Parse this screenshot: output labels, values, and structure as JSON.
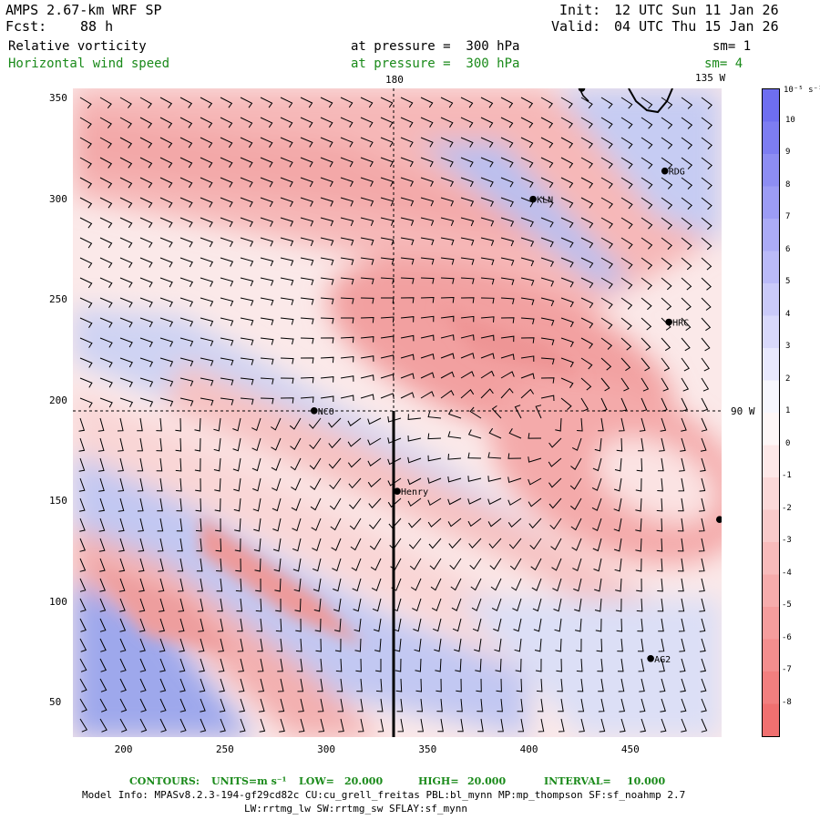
{
  "header": {
    "model": "AMPS 2.67-km WRF SP",
    "forecast_label": "Fcst:",
    "forecast_value": "88 h",
    "init_label": "Init:",
    "init_value": "12 UTC Sun 11 Jan 26",
    "valid_label": "Valid:",
    "valid_value": "04 UTC Thu 15 Jan 26"
  },
  "fields": [
    {
      "name": "Relative vorticity",
      "level": "at pressure =  300 hPa",
      "smooth": "sm= 1",
      "color": "#000000"
    },
    {
      "name": "Horizontal wind speed",
      "level": "at pressure =  300 hPa",
      "smooth": "sm= 4",
      "color": "#1a8a1a"
    }
  ],
  "map": {
    "meridian_labels": [
      "180",
      "135 W"
    ],
    "parallel_label": "90 W",
    "x_ticks": [
      "200",
      "250",
      "300",
      "350",
      "400",
      "450"
    ],
    "y_ticks": [
      "350",
      "300",
      "250",
      "200",
      "150",
      "100",
      "50"
    ],
    "x_tick_values": [
      200,
      250,
      300,
      350,
      400,
      450
    ],
    "y_tick_values": [
      350,
      300,
      250,
      200,
      150,
      100,
      50
    ],
    "x_range": [
      175,
      495
    ],
    "y_range": [
      33,
      355
    ],
    "stations": [
      {
        "label": "KLN",
        "x": 402,
        "y": 300
      },
      {
        "label": "RDG",
        "x": 467,
        "y": 314
      },
      {
        "label": "HRC",
        "x": 469,
        "y": 239
      },
      {
        "label": "NCO",
        "x": 294,
        "y": 195
      },
      {
        "label": "Henry",
        "x": 335,
        "y": 155
      },
      {
        "label": "AG2",
        "x": 460,
        "y": 72
      },
      {
        "label": "",
        "x": 494,
        "y": 141
      },
      {
        "label": "",
        "x": 426,
        "y": 355
      }
    ]
  },
  "colorbar": {
    "units": "10⁻⁵ s⁻¹",
    "labels": [
      "10",
      "9",
      "8",
      "7",
      "6",
      "5",
      "4",
      "3",
      "2",
      "1",
      "0",
      "-1",
      "-2",
      "-3",
      "-4",
      "-5",
      "-6",
      "-7",
      "-8"
    ],
    "positive_color": "#6e6ef0",
    "negative_color": "#f07070"
  },
  "footer": {
    "contours_label": "CONTOURS:",
    "units_label": "UNITS=m s⁻¹",
    "low_label": "LOW=",
    "low_value": "20.000",
    "high_label": "HIGH=",
    "high_value": "20.000",
    "interval_label": "INTERVAL=",
    "interval_value": "10.000",
    "model_info": "Model Info: MPASv8.2.3-194-gf29cd82c CU:cu_grell_freitas PBL:bl_mynn MP:mp_thompson SF:sf_noahmp 2.7",
    "model_info_line2": "LW:rrtmg_lw SW:rrtmg_sw SFLAY:sf_mynn"
  }
}
